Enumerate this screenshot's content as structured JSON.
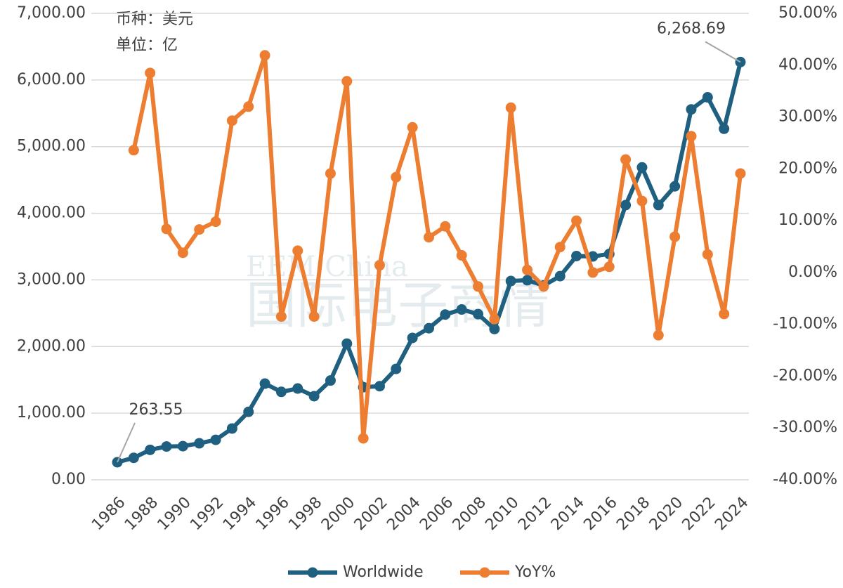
{
  "chart_data": {
    "type": "line",
    "annotations": [
      "币种：美元",
      "单位：亿"
    ],
    "watermark": [
      "EEM China",
      "国际电子商情"
    ],
    "categories": [
      "1986",
      null,
      "1988",
      null,
      "1990",
      null,
      "1992",
      null,
      "1994",
      null,
      "1996",
      null,
      "1998",
      null,
      "2000",
      null,
      "2002",
      null,
      "2004",
      null,
      "2006",
      null,
      "2008",
      null,
      "2010",
      null,
      "2012",
      null,
      "2014",
      null,
      "2016",
      null,
      "2018",
      null,
      "2020",
      null,
      "2022",
      null,
      "2024"
    ],
    "series": [
      {
        "name": "Worldwide",
        "color": "#1f5f80",
        "axis": "y",
        "values": [
          263.55,
          330,
          450,
          500,
          505,
          548,
          600,
          770,
          1020,
          1444,
          1320,
          1370,
          1255,
          1490,
          2044,
          1390,
          1405,
          1665,
          2130,
          2275,
          2480,
          2556,
          2486,
          2263,
          2983,
          2995,
          2916,
          3056,
          3358,
          3352,
          3389,
          4122,
          4688,
          4123,
          4404,
          5559,
          5740,
          5268,
          6268.69
        ],
        "value_labels": [
          "263.55",
          null,
          null,
          null,
          null,
          null,
          null,
          null,
          null,
          null,
          null,
          null,
          null,
          null,
          null,
          null,
          null,
          null,
          null,
          null,
          null,
          null,
          null,
          null,
          null,
          null,
          null,
          null,
          null,
          null,
          null,
          null,
          null,
          null,
          null,
          null,
          null,
          null,
          "6,268.69"
        ]
      },
      {
        "name": "YoY%",
        "color": "#ed7d31",
        "axis": "y2",
        "values": [
          null,
          23.6,
          38.5,
          8.4,
          3.8,
          8.3,
          9.8,
          29.3,
          32.0,
          41.9,
          -8.5,
          4.2,
          -8.5,
          19.1,
          36.9,
          -32.0,
          1.4,
          18.4,
          28.0,
          6.8,
          8.9,
          3.3,
          -2.7,
          -9.0,
          31.8,
          0.5,
          -2.7,
          4.9,
          10.0,
          0,
          1.1,
          21.8,
          13.8,
          -12.1,
          6.9,
          26.3,
          3.5,
          -8.0,
          19.1
        ]
      }
    ],
    "ylim": [
      0,
      7000
    ],
    "yticks": [
      {
        "value": 0,
        "label": "0.00"
      },
      {
        "value": 1000,
        "label": "1,000.00"
      },
      {
        "value": 2000,
        "label": "2,000.00"
      },
      {
        "value": 3000,
        "label": "3,000.00"
      },
      {
        "value": 4000,
        "label": "4,000.00"
      },
      {
        "value": 5000,
        "label": "5,000.00"
      },
      {
        "value": 6000,
        "label": "6,000.00"
      },
      {
        "value": 7000,
        "label": "7,000.00"
      }
    ],
    "y2lim": [
      -40,
      50
    ],
    "y2ticks": [
      {
        "value": -40,
        "label": "-40.00%"
      },
      {
        "value": -30,
        "label": "-30.00%"
      },
      {
        "value": -20,
        "label": "-20.00%"
      },
      {
        "value": -10,
        "label": "-10.00%"
      },
      {
        "value": 0,
        "label": "0.00%"
      },
      {
        "value": 10,
        "label": "10.00%"
      },
      {
        "value": 20,
        "label": "20.00%"
      },
      {
        "value": 30,
        "label": "30.00%"
      },
      {
        "value": 40,
        "label": "40.00%"
      },
      {
        "value": 50,
        "label": "50.00%"
      }
    ],
    "grid": true,
    "legend": "bottom"
  }
}
